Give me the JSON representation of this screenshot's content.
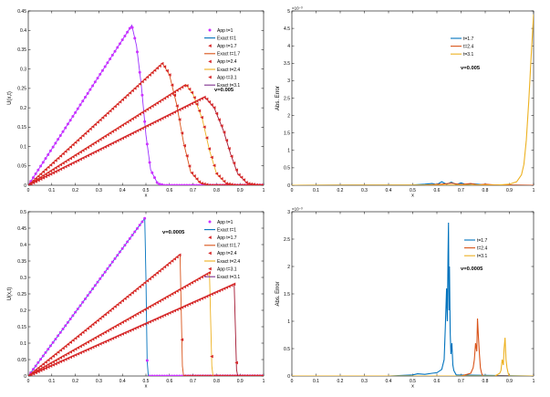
{
  "chart_data": [
    {
      "type": "line",
      "panel": "top-left",
      "xlabel": "x",
      "ylabel": "U(x,t)",
      "xlim": [
        0,
        1
      ],
      "ylim": [
        0,
        0.45
      ],
      "xticks": [
        "0",
        "0.1",
        "0.2",
        "0.3",
        "0.4",
        "0.5",
        "0.6",
        "0.7",
        "0.8",
        "0.9",
        "1"
      ],
      "yticks": [
        "0",
        "0.05",
        "0.1",
        "0.15",
        "0.2",
        "0.25",
        "0.3",
        "0.35",
        "0.4",
        "0.45"
      ],
      "annotation": "v=0.005",
      "legend_position": "top-right",
      "legend": [
        {
          "label": "App t=1",
          "color": "#cc33ff",
          "style": "marker",
          "marker": "o"
        },
        {
          "label": "Exact t=1",
          "color": "#0072bd",
          "style": "line"
        },
        {
          "label": "App t=1.7",
          "color": "#d62728",
          "style": "marker",
          "marker": "<"
        },
        {
          "label": "Exact t=1.7",
          "color": "#d95319",
          "style": "line"
        },
        {
          "label": "App t=2.4",
          "color": "#d62728",
          "style": "marker",
          "marker": "<"
        },
        {
          "label": "Exact t=2.4",
          "color": "#edb120",
          "style": "line"
        },
        {
          "label": "App t=3.1",
          "color": "#d62728",
          "style": "marker",
          "marker": "<"
        },
        {
          "label": "Exact t=3.1",
          "color": "#7e2f8e",
          "style": "line"
        }
      ],
      "series": [
        {
          "line_color": "#9b30ff",
          "marker_color": "#cc33ff",
          "marker": "o",
          "x": [
            0,
            0.44,
            0.46,
            0.48,
            0.5,
            0.52,
            0.55,
            0.58,
            1.0
          ],
          "y": [
            0,
            0.413,
            0.36,
            0.26,
            0.13,
            0.04,
            0.004,
            0,
            0
          ]
        },
        {
          "line_color": "#d95319",
          "marker_color": "#d62728",
          "marker": "<",
          "x": [
            0,
            0.57,
            0.6,
            0.63,
            0.66,
            0.69,
            0.73,
            0.77,
            1.0
          ],
          "y": [
            0,
            0.315,
            0.285,
            0.21,
            0.11,
            0.035,
            0.006,
            0,
            0
          ]
        },
        {
          "line_color": "#edb120",
          "marker_color": "#d62728",
          "marker": "<",
          "x": [
            0,
            0.67,
            0.7,
            0.74,
            0.77,
            0.8,
            0.84,
            0.88,
            1.0
          ],
          "y": [
            0,
            0.26,
            0.235,
            0.17,
            0.09,
            0.03,
            0.005,
            0,
            0
          ]
        },
        {
          "line_color": "#a2142f",
          "marker_color": "#d62728",
          "marker": "<",
          "x": [
            0,
            0.75,
            0.79,
            0.83,
            0.86,
            0.89,
            0.93,
            0.97,
            1.0
          ],
          "y": [
            0,
            0.228,
            0.2,
            0.14,
            0.08,
            0.03,
            0.005,
            0.001,
            0
          ]
        }
      ]
    },
    {
      "type": "line",
      "panel": "top-right",
      "xlabel": "x",
      "ylabel": "Abs. Error",
      "xlim": [
        0,
        1
      ],
      "ylim": [
        0,
        5
      ],
      "exponent": "×10⁻³",
      "xticks": [
        "0",
        "0.1",
        "0.2",
        "0.3",
        "0.4",
        "0.5",
        "0.6",
        "0.7",
        "0.8",
        "0.9",
        "1"
      ],
      "yticks": [
        "0",
        "0.5",
        "1",
        "1.5",
        "2",
        "2.5",
        "3",
        "3.5",
        "4",
        "4.5",
        "5"
      ],
      "annotation": "v=0.005",
      "legend_position": "top-center",
      "legend": [
        {
          "label": "t=1.7",
          "color": "#0072bd"
        },
        {
          "label": "t=2.4",
          "color": "#d95319"
        },
        {
          "label": "t=3.1",
          "color": "#edb120"
        }
      ],
      "series": [
        {
          "color": "#0072bd",
          "x": [
            0,
            0.5,
            0.55,
            0.58,
            0.6,
            0.62,
            0.64,
            0.66,
            0.68,
            0.7,
            0.72,
            0.75,
            0.8,
            1.0
          ],
          "y": [
            0,
            0.01,
            0.03,
            0.05,
            0.02,
            0.1,
            0.03,
            0.09,
            0.02,
            0.07,
            0.02,
            0.04,
            0.01,
            0
          ]
        },
        {
          "color": "#d95319",
          "x": [
            0,
            0.55,
            0.62,
            0.66,
            0.7,
            0.74,
            0.77,
            0.8,
            0.84,
            0.88,
            1.0
          ],
          "y": [
            0,
            0.005,
            0.03,
            0.06,
            0.02,
            0.05,
            0.01,
            0.03,
            0.01,
            0.01,
            0
          ]
        },
        {
          "color": "#edb120",
          "x": [
            0,
            0.85,
            0.9,
            0.93,
            0.95,
            0.96,
            0.97,
            0.98,
            0.99,
            1.0
          ],
          "y": [
            0,
            0.005,
            0.03,
            0.1,
            0.3,
            0.6,
            1.3,
            2.4,
            3.7,
            4.9
          ]
        }
      ]
    },
    {
      "type": "line",
      "panel": "bottom-left",
      "xlabel": "x",
      "ylabel": "U(x,t)",
      "xlim": [
        0,
        1
      ],
      "ylim": [
        0,
        0.5
      ],
      "xticks": [
        "0",
        "0.1",
        "0.2",
        "0.3",
        "0.4",
        "0.5",
        "0.6",
        "0.7",
        "0.8",
        "0.9",
        "1"
      ],
      "yticks": [
        "0",
        "0.05",
        "0.1",
        "0.15",
        "0.2",
        "0.25",
        "0.3",
        "0.35",
        "0.4",
        "0.45",
        "0.5"
      ],
      "annotation": "v=0.0005",
      "legend_position": "top-right",
      "legend": [
        {
          "label": "App t=1",
          "color": "#cc33ff",
          "style": "marker",
          "marker": "o"
        },
        {
          "label": "Exact t=1",
          "color": "#0072bd",
          "style": "line"
        },
        {
          "label": "App t=1.7",
          "color": "#d62728",
          "style": "marker",
          "marker": "<"
        },
        {
          "label": "Exact t=1.7",
          "color": "#d95319",
          "style": "line"
        },
        {
          "label": "App t=2.4",
          "color": "#d62728",
          "style": "marker",
          "marker": "<"
        },
        {
          "label": "Exact t=2.4",
          "color": "#edb120",
          "style": "line"
        },
        {
          "label": "App t=3.1",
          "color": "#d62728",
          "style": "marker",
          "marker": "<"
        },
        {
          "label": "Exact t=3.1",
          "color": "#7e2f8e",
          "style": "line"
        }
      ],
      "series": [
        {
          "line_color": "#0072bd",
          "marker_color": "#cc33ff",
          "marker": "o",
          "x": [
            0,
            0.495,
            0.5,
            0.505,
            0.51,
            1.0
          ],
          "y": [
            0,
            0.48,
            0.3,
            0.05,
            0,
            0
          ]
        },
        {
          "line_color": "#d95319",
          "marker_color": "#d62728",
          "marker": "<",
          "x": [
            0,
            0.645,
            0.65,
            0.655,
            0.66,
            1.0
          ],
          "y": [
            0,
            0.37,
            0.2,
            0.03,
            0,
            0
          ]
        },
        {
          "line_color": "#edb120",
          "marker_color": "#d62728",
          "marker": "<",
          "x": [
            0,
            0.77,
            0.775,
            0.78,
            0.785,
            1.0
          ],
          "y": [
            0,
            0.315,
            0.17,
            0.03,
            0,
            0
          ]
        },
        {
          "line_color": "#a2142f",
          "marker_color": "#d62728",
          "marker": "<",
          "x": [
            0,
            0.875,
            0.88,
            0.885,
            0.89,
            1.0
          ],
          "y": [
            0,
            0.28,
            0.15,
            0.02,
            0,
            0
          ]
        }
      ]
    },
    {
      "type": "line",
      "panel": "bottom-right",
      "xlabel": "x",
      "ylabel": "Abs. Error",
      "xlim": [
        0,
        1
      ],
      "ylim": [
        0,
        3
      ],
      "exponent": "×10⁻³",
      "xticks": [
        "0",
        "0.1",
        "0.2",
        "0.3",
        "0.4",
        "0.5",
        "0.6",
        "0.7",
        "0.8",
        "0.9",
        "1"
      ],
      "yticks": [
        "0",
        "0.5",
        "1",
        "1.5",
        "2",
        "2.5",
        "3"
      ],
      "annotation": "v=0.0005",
      "legend_position": "top-center",
      "legend": [
        {
          "label": "t=1.7",
          "color": "#0072bd"
        },
        {
          "label": "t=2.4",
          "color": "#d95319"
        },
        {
          "label": "t=3.1",
          "color": "#edb120"
        }
      ],
      "series": [
        {
          "color": "#0072bd",
          "x": [
            0,
            0.4,
            0.5,
            0.52,
            0.55,
            0.58,
            0.6,
            0.62,
            0.63,
            0.635,
            0.64,
            0.643,
            0.646,
            0.648,
            0.65,
            0.652,
            0.655,
            0.658,
            0.662,
            0.666,
            0.67,
            0.68,
            1.0
          ],
          "y": [
            0,
            0,
            0.02,
            0.04,
            0.03,
            0.05,
            0.06,
            0.12,
            0.3,
            0.9,
            1.6,
            1.0,
            2.2,
            2.8,
            1.2,
            2.0,
            0.8,
            0.4,
            0.6,
            0.2,
            0.1,
            0.02,
            0
          ]
        },
        {
          "color": "#d95319",
          "x": [
            0,
            0.7,
            0.74,
            0.75,
            0.755,
            0.76,
            0.765,
            0.768,
            0.772,
            0.776,
            0.78,
            0.785,
            0.79,
            1.0
          ],
          "y": [
            0,
            0,
            0.05,
            0.15,
            0.3,
            0.6,
            0.45,
            1.05,
            0.7,
            0.4,
            0.15,
            0.05,
            0,
            0
          ]
        },
        {
          "color": "#edb120",
          "x": [
            0,
            0.84,
            0.86,
            0.865,
            0.87,
            0.875,
            0.878,
            0.882,
            0.886,
            0.89,
            0.895,
            0.9,
            1.0
          ],
          "y": [
            0,
            0,
            0.05,
            0.1,
            0.3,
            0.2,
            0.5,
            0.7,
            0.3,
            0.15,
            0.05,
            0,
            0
          ]
        }
      ]
    }
  ]
}
